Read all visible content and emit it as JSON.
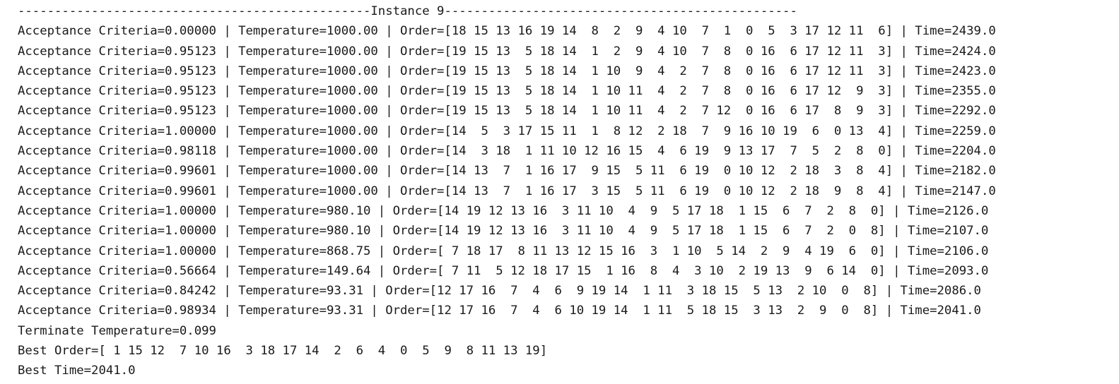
{
  "console": {
    "header": "------------------------------------------------Instance 9------------------------------------------------",
    "log_lines": [
      "Acceptance Criteria=0.00000 | Temperature=1000.00 | Order=[18 15 13 16 19 14  8  2  9  4 10  7  1  0  5  3 17 12 11  6] | Time=2439.0",
      "Acceptance Criteria=0.95123 | Temperature=1000.00 | Order=[19 15 13  5 18 14  1  2  9  4 10  7  8  0 16  6 17 12 11  3] | Time=2424.0",
      "Acceptance Criteria=0.95123 | Temperature=1000.00 | Order=[19 15 13  5 18 14  1 10  9  4  2  7  8  0 16  6 17 12 11  3] | Time=2423.0",
      "Acceptance Criteria=0.95123 | Temperature=1000.00 | Order=[19 15 13  5 18 14  1 10 11  4  2  7  8  0 16  6 17 12  9  3] | Time=2355.0",
      "Acceptance Criteria=0.95123 | Temperature=1000.00 | Order=[19 15 13  5 18 14  1 10 11  4  2  7 12  0 16  6 17  8  9  3] | Time=2292.0",
      "Acceptance Criteria=1.00000 | Temperature=1000.00 | Order=[14  5  3 17 15 11  1  8 12  2 18  7  9 16 10 19  6  0 13  4] | Time=2259.0",
      "Acceptance Criteria=0.98118 | Temperature=1000.00 | Order=[14  3 18  1 11 10 12 16 15  4  6 19  9 13 17  7  5  2  8  0] | Time=2204.0",
      "Acceptance Criteria=0.99601 | Temperature=1000.00 | Order=[14 13  7  1 16 17  9 15  5 11  6 19  0 10 12  2 18  3  8  4] | Time=2182.0",
      "Acceptance Criteria=0.99601 | Temperature=1000.00 | Order=[14 13  7  1 16 17  3 15  5 11  6 19  0 10 12  2 18  9  8  4] | Time=2147.0",
      "Acceptance Criteria=1.00000 | Temperature=980.10 | Order=[14 19 12 13 16  3 11 10  4  9  5 17 18  1 15  6  7  2  8  0] | Time=2126.0",
      "Acceptance Criteria=1.00000 | Temperature=980.10 | Order=[14 19 12 13 16  3 11 10  4  9  5 17 18  1 15  6  7  2  0  8] | Time=2107.0",
      "Acceptance Criteria=1.00000 | Temperature=868.75 | Order=[ 7 18 17  8 11 13 12 15 16  3  1 10  5 14  2  9  4 19  6  0] | Time=2106.0",
      "Acceptance Criteria=0.56664 | Temperature=149.64 | Order=[ 7 11  5 12 18 17 15  1 16  8  4  3 10  2 19 13  9  6 14  0] | Time=2093.0",
      "Acceptance Criteria=0.84242 | Temperature=93.31 | Order=[12 17 16  7  4  6  9 19 14  1 11  3 18 15  5 13  2 10  0  8] | Time=2086.0",
      "Acceptance Criteria=0.98934 | Temperature=93.31 | Order=[12 17 16  7  4  6 10 19 14  1 11  5 18 15  3 13  2  9  0  8] | Time=2041.0"
    ],
    "terminate_line": "Terminate Temperature=0.099",
    "best_order_line": "Best Order=[ 1 15 12  7 10 16  3 18 17 14  2  6  4  0  5  9  8 11 13 19]",
    "best_time_line": "Best Time=2041.0"
  }
}
